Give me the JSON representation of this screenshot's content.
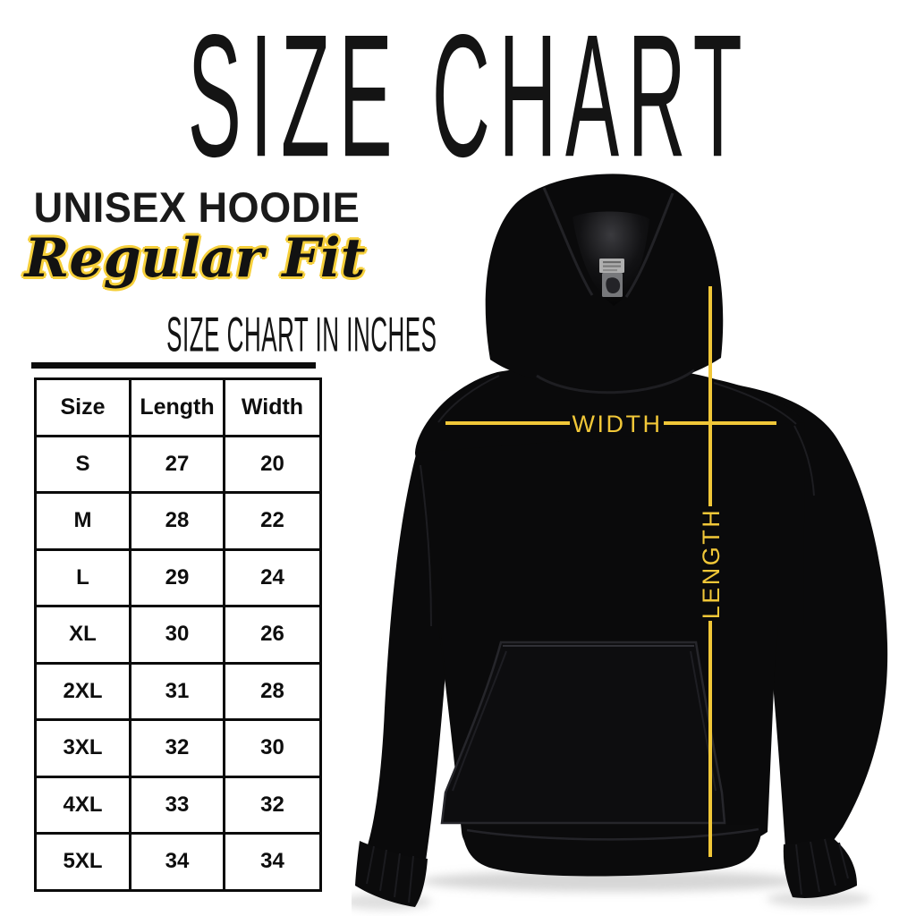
{
  "header": {
    "title": "SIZE CHART",
    "product_name": "UNISEX HOODIE",
    "fit": "Regular Fit",
    "table_heading": "SIZE CHART IN INCHES"
  },
  "size_table": {
    "columns": [
      "Size",
      "Length",
      "Width"
    ],
    "rows": [
      [
        "S",
        "27",
        "20"
      ],
      [
        "M",
        "28",
        "22"
      ],
      [
        "L",
        "29",
        "24"
      ],
      [
        "XL",
        "30",
        "26"
      ],
      [
        "2XL",
        "31",
        "28"
      ],
      [
        "3XL",
        "32",
        "30"
      ],
      [
        "4XL",
        "33",
        "32"
      ],
      [
        "5XL",
        "34",
        "34"
      ]
    ]
  },
  "diagram": {
    "width_label": "WIDTH",
    "length_label": "LENGTH"
  },
  "colors": {
    "accent_yellow": "#F1C738",
    "ink": "#0B0B0B",
    "hoodie_black": "#0A0A0B",
    "background": "#FFFFFF"
  },
  "chart_data": {
    "type": "table",
    "title": "SIZE CHART IN INCHES",
    "units": "inches",
    "columns": [
      "Size",
      "Length",
      "Width"
    ],
    "categories": [
      "S",
      "M",
      "L",
      "XL",
      "2XL",
      "3XL",
      "4XL",
      "5XL"
    ],
    "series": [
      {
        "name": "Length",
        "values": [
          27,
          28,
          29,
          30,
          31,
          32,
          33,
          34
        ]
      },
      {
        "name": "Width",
        "values": [
          20,
          22,
          24,
          26,
          28,
          30,
          32,
          34
        ]
      }
    ]
  }
}
